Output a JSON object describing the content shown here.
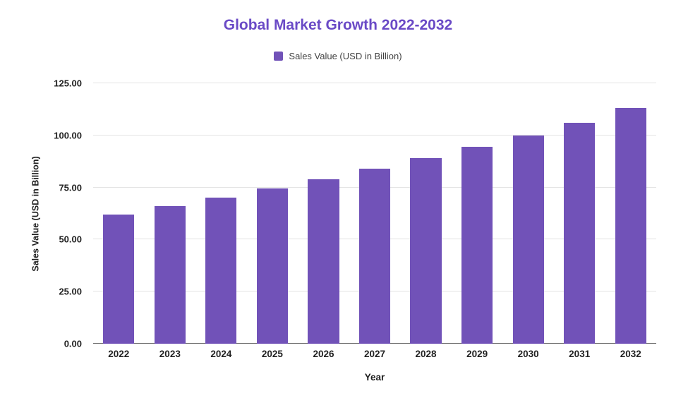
{
  "chart_data": {
    "type": "bar",
    "title": "Global Market Growth 2022-2032",
    "xlabel": "Year",
    "ylabel": "Sales Value (USD in Billion)",
    "categories": [
      "2022",
      "2023",
      "2024",
      "2025",
      "2026",
      "2027",
      "2028",
      "2029",
      "2030",
      "2031",
      "2032"
    ],
    "values": [
      62,
      66,
      70.2,
      74.5,
      79,
      84,
      89,
      94.5,
      100,
      106,
      113
    ],
    "ylim": [
      0,
      125
    ],
    "yticks": [
      0,
      25,
      50,
      75,
      100,
      125
    ],
    "ytick_labels": [
      "0.00",
      "25.00",
      "50.00",
      "75.00",
      "100.00",
      "125.00"
    ],
    "grid": "horizontal",
    "legend": {
      "position": "top",
      "entries": [
        "Sales Value (USD in Billion)"
      ]
    },
    "colors": {
      "bar": "#7152b8",
      "title": "#6a4ac6",
      "grid": "#e3e3e3",
      "axis": "#6d6d6d",
      "text": "#212121",
      "legend_text": "#424242",
      "background": "#ffffff"
    }
  }
}
